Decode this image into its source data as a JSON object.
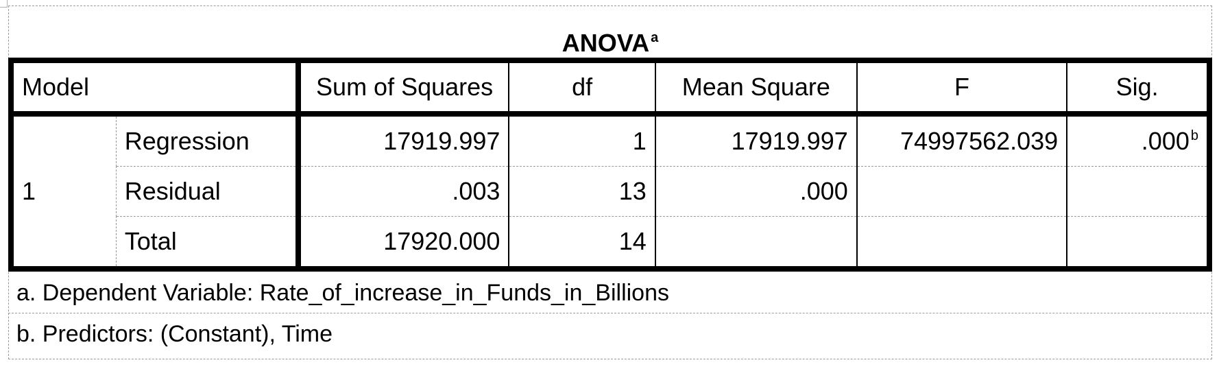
{
  "title": "ANOVA",
  "title_superscript": "a",
  "columns": {
    "model": "Model",
    "sum_of_squares": "Sum of Squares",
    "df": "df",
    "mean_square": "Mean Square",
    "f": "F",
    "sig": "Sig."
  },
  "model_number": "1",
  "rows": [
    {
      "label": "Regression",
      "sum_of_squares": "17919.997",
      "df": "1",
      "mean_square": "17919.997",
      "f": "74997562.039",
      "sig": ".000",
      "sig_superscript": "b"
    },
    {
      "label": "Residual",
      "sum_of_squares": ".003",
      "df": "13",
      "mean_square": ".000",
      "f": "",
      "sig": ""
    },
    {
      "label": "Total",
      "sum_of_squares": "17920.000",
      "df": "14",
      "mean_square": "",
      "f": "",
      "sig": ""
    }
  ],
  "footnotes": {
    "a": "a. Dependent Variable: Rate_of_increase_in_Funds_in_Billions",
    "b": "b. Predictors: (Constant), Time"
  }
}
